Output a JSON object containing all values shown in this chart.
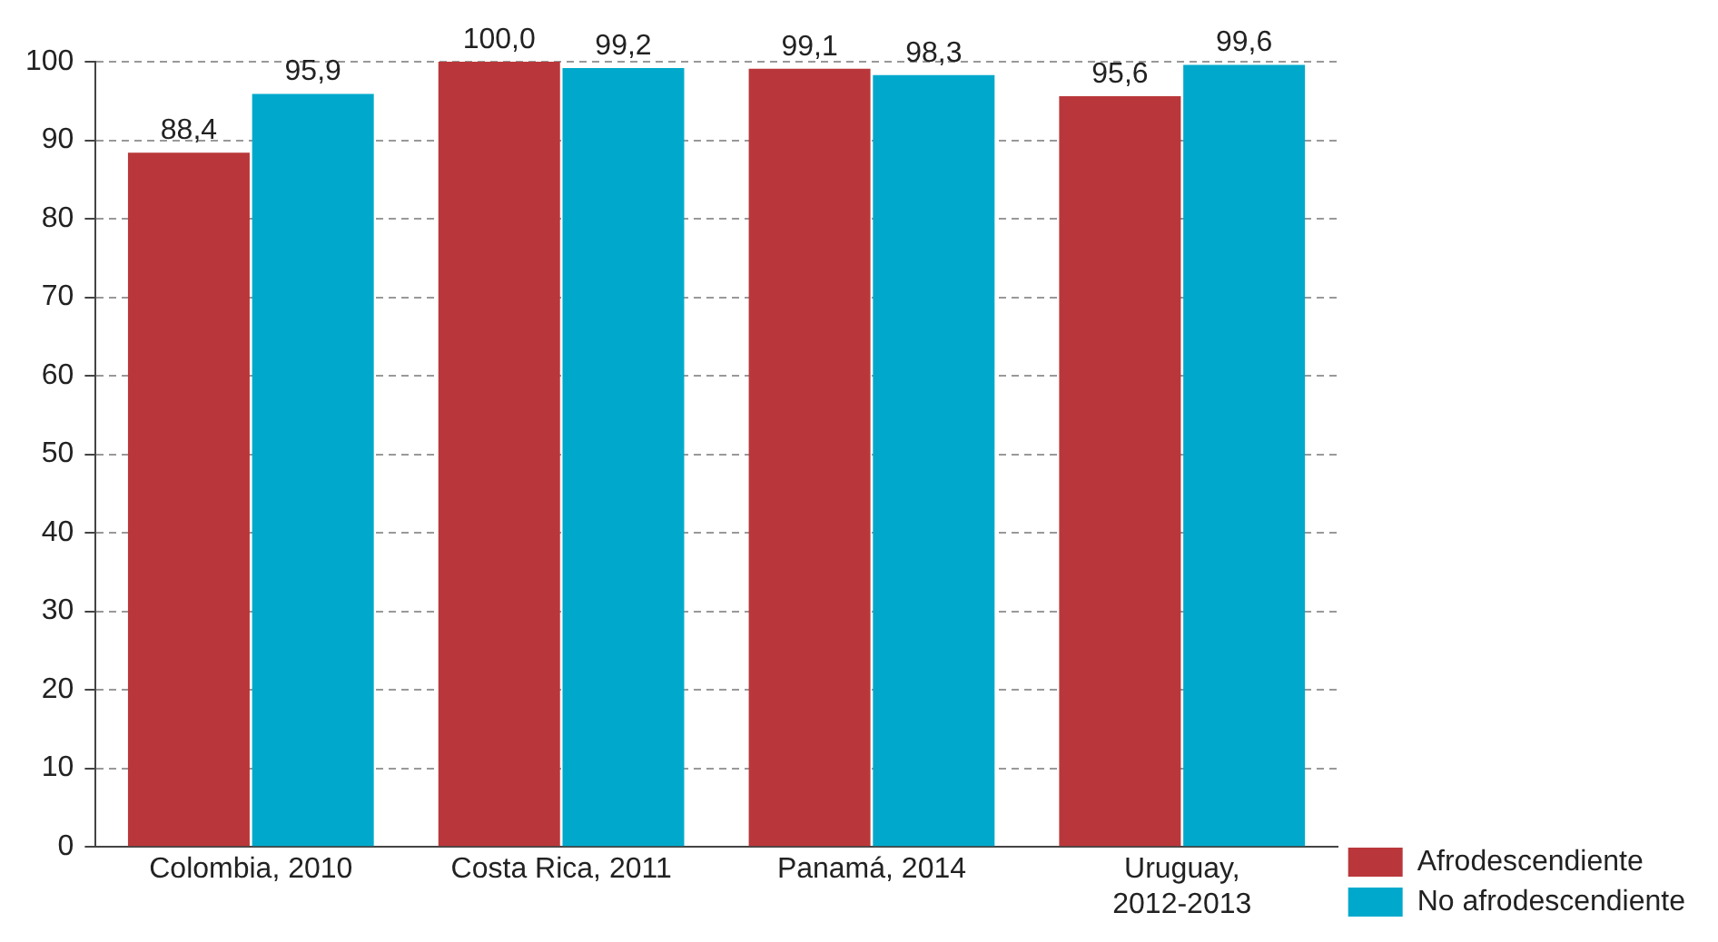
{
  "chart_data": {
    "type": "bar",
    "categories": [
      "Colombia, 2010",
      "Costa Rica, 2011",
      "Panamá, 2014",
      "Uruguay,\n2012-2013"
    ],
    "series": [
      {
        "name": "Afrodescendiente",
        "color": "#b9373a",
        "values": [
          88.4,
          100.0,
          99.1,
          95.6
        ],
        "value_labels": [
          "88,4",
          "100,0",
          "99,1",
          "95,6"
        ]
      },
      {
        "name": "No afrodescendiente",
        "color": "#00a9cc",
        "values": [
          95.9,
          99.2,
          98.3,
          99.6
        ],
        "value_labels": [
          "95,9",
          "99,2",
          "98,3",
          "99,6"
        ]
      }
    ],
    "ylim": [
      0,
      100
    ],
    "yticks": [
      0,
      10,
      20,
      30,
      40,
      50,
      60,
      70,
      80,
      90,
      100
    ],
    "grid": "y",
    "legend": "bottom right"
  }
}
